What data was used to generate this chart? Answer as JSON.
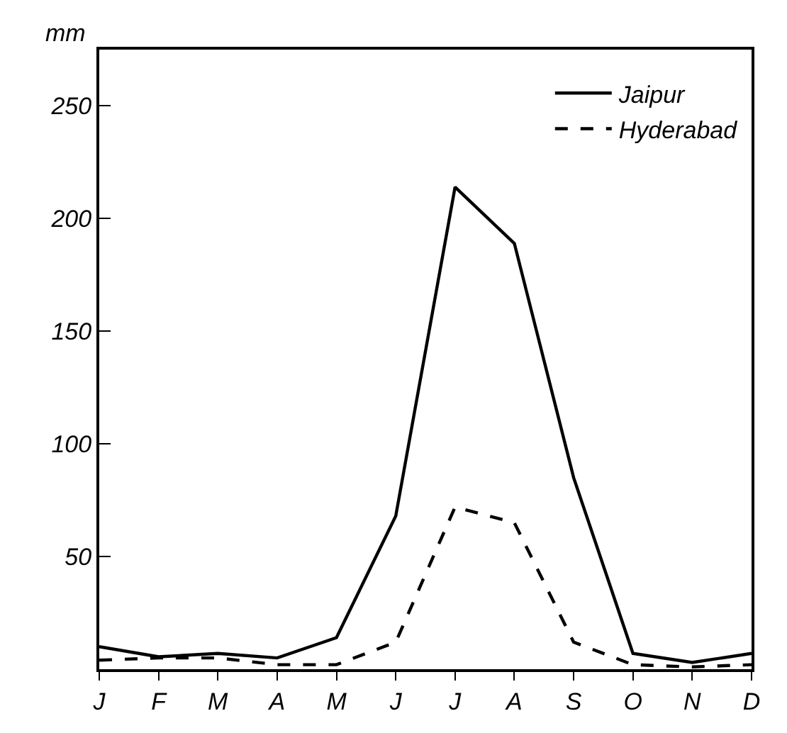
{
  "chart_data": {
    "type": "line",
    "ylabel": "mm",
    "categories": [
      "J",
      "F",
      "M",
      "A",
      "M",
      "J",
      "J",
      "A",
      "S",
      "O",
      "N",
      "D"
    ],
    "series": [
      {
        "name": "Jaipur",
        "color": "#000000",
        "line_style": "solid",
        "values": [
          10,
          5.5,
          7,
          5,
          14,
          68,
          214,
          189,
          85,
          7,
          3,
          7
        ]
      },
      {
        "name": "Hyderabad",
        "color": "#000000",
        "line_style": "dashed",
        "values": [
          4,
          5,
          5,
          2,
          2,
          12,
          72,
          65,
          12,
          2,
          1,
          2
        ]
      }
    ],
    "ylim": [
      0,
      275
    ],
    "yticks": [
      50,
      100,
      150,
      200,
      250
    ],
    "grid": false,
    "legend": "top right",
    "marker": "none"
  }
}
